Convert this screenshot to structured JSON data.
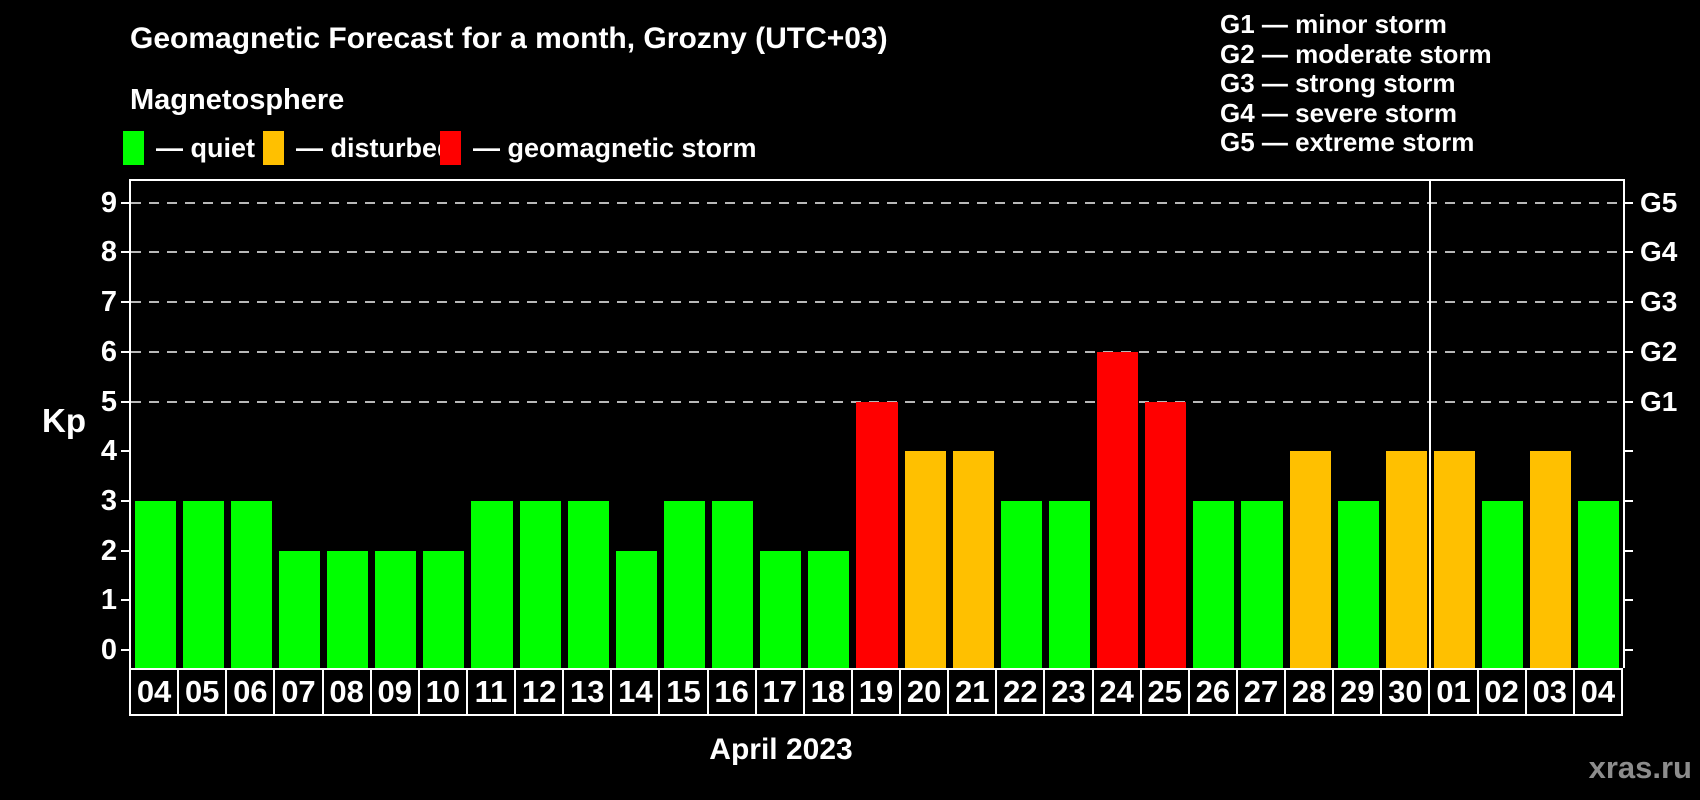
{
  "title": "Geomagnetic Forecast for a month, Grozny (UTC+03)",
  "subtitle": "Magnetosphere",
  "legend": {
    "items": [
      {
        "label": "— quiet",
        "status": "quiet"
      },
      {
        "label": "— disturbed",
        "status": "disturbed"
      },
      {
        "label": "— geomagnetic storm",
        "status": "storm"
      }
    ]
  },
  "g_legend": [
    "G1 — minor storm",
    "G2 — moderate storm",
    "G3 — strong storm",
    "G4 — severe storm",
    "G5 — extreme storm"
  ],
  "colors": {
    "quiet": "#00ff00",
    "disturbed": "#ffc000",
    "storm": "#ff0000",
    "background": "#000000",
    "grid": "#b8b8b8",
    "axis": "#ffffff",
    "watermark": "#8d8d8d"
  },
  "axis": {
    "kp_label": "Kp",
    "month_label": "April 2023"
  },
  "watermark": "xras.ru",
  "chart_data": {
    "type": "bar",
    "title": "Geomagnetic Forecast for a month, Grozny (UTC+03)",
    "xlabel": "April 2023",
    "ylabel": "Kp",
    "ylim": [
      0,
      9
    ],
    "yticks": [
      0,
      1,
      2,
      3,
      4,
      5,
      6,
      7,
      8,
      9
    ],
    "grid_levels": [
      5,
      6,
      7,
      8,
      9
    ],
    "grid": "dashed-at-storm-levels-only",
    "legend_position": "top",
    "g_scale": [
      {
        "label": "G1",
        "kp": 5
      },
      {
        "label": "G2",
        "kp": 6
      },
      {
        "label": "G3",
        "kp": 7
      },
      {
        "label": "G4",
        "kp": 8
      },
      {
        "label": "G5",
        "kp": 9
      }
    ],
    "month_separator_after_index": 26,
    "days": [
      {
        "day": "04",
        "kp": 3,
        "status": "quiet"
      },
      {
        "day": "05",
        "kp": 3,
        "status": "quiet"
      },
      {
        "day": "06",
        "kp": 3,
        "status": "quiet"
      },
      {
        "day": "07",
        "kp": 2,
        "status": "quiet"
      },
      {
        "day": "08",
        "kp": 2,
        "status": "quiet"
      },
      {
        "day": "09",
        "kp": 2,
        "status": "quiet"
      },
      {
        "day": "10",
        "kp": 2,
        "status": "quiet"
      },
      {
        "day": "11",
        "kp": 3,
        "status": "quiet"
      },
      {
        "day": "12",
        "kp": 3,
        "status": "quiet"
      },
      {
        "day": "13",
        "kp": 3,
        "status": "quiet"
      },
      {
        "day": "14",
        "kp": 2,
        "status": "quiet"
      },
      {
        "day": "15",
        "kp": 3,
        "status": "quiet"
      },
      {
        "day": "16",
        "kp": 3,
        "status": "quiet"
      },
      {
        "day": "17",
        "kp": 2,
        "status": "quiet"
      },
      {
        "day": "18",
        "kp": 2,
        "status": "quiet"
      },
      {
        "day": "19",
        "kp": 5,
        "status": "storm"
      },
      {
        "day": "20",
        "kp": 4,
        "status": "disturbed"
      },
      {
        "day": "21",
        "kp": 4,
        "status": "disturbed"
      },
      {
        "day": "22",
        "kp": 3,
        "status": "quiet"
      },
      {
        "day": "23",
        "kp": 3,
        "status": "quiet"
      },
      {
        "day": "24",
        "kp": 6,
        "status": "storm"
      },
      {
        "day": "25",
        "kp": 5,
        "status": "storm"
      },
      {
        "day": "26",
        "kp": 3,
        "status": "quiet"
      },
      {
        "day": "27",
        "kp": 3,
        "status": "quiet"
      },
      {
        "day": "28",
        "kp": 4,
        "status": "disturbed"
      },
      {
        "day": "29",
        "kp": 3,
        "status": "quiet"
      },
      {
        "day": "30",
        "kp": 4,
        "status": "disturbed"
      },
      {
        "day": "01",
        "kp": 4,
        "status": "disturbed"
      },
      {
        "day": "02",
        "kp": 3,
        "status": "quiet"
      },
      {
        "day": "03",
        "kp": 4,
        "status": "disturbed"
      },
      {
        "day": "04",
        "kp": 3,
        "status": "quiet"
      }
    ]
  }
}
